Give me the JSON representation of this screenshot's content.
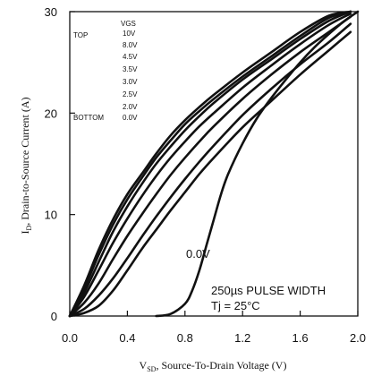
{
  "chart_data": {
    "type": "line",
    "title": "",
    "xlabel_main": "V",
    "xlabel_sub": "SD",
    "xlabel_rest": ", Source-To-Drain Voltage  (V)",
    "ylabel_main": "I",
    "ylabel_sub": "D",
    "ylabel_rest": ", Drain-to-Source Current (A)",
    "xlim": [
      0,
      2.0
    ],
    "ylim": [
      0,
      30
    ],
    "xticks": [
      "0.0",
      "0.4",
      "0.8",
      "1.2",
      "1.6",
      "2.0"
    ],
    "yticks": [
      "0",
      "10",
      "20",
      "30"
    ],
    "legend": {
      "header": "VGS",
      "top_label": "TOP",
      "bottom_label": "BOTTOM",
      "entries": [
        "10V",
        "8.0V",
        "4.5V",
        "3.5V",
        "3.0V",
        "2.5V",
        "2.0V",
        "0.0V"
      ]
    },
    "annotations": {
      "curve_label": "0.0V",
      "pulse": "250µs PULSE WIDTH",
      "temp": "Tj = 25°C"
    },
    "series": [
      {
        "name": "10V",
        "x": [
          0,
          0.1,
          0.2,
          0.3,
          0.4,
          0.5,
          0.6,
          0.7,
          0.8,
          0.9,
          1.0,
          1.2,
          1.4,
          1.6,
          1.8,
          1.95
        ],
        "y": [
          0,
          3,
          6.5,
          9.5,
          12,
          14,
          16,
          17.8,
          19.3,
          20.6,
          21.8,
          24,
          26,
          28,
          29.6,
          30
        ]
      },
      {
        "name": "8.0V",
        "x": [
          0,
          0.1,
          0.2,
          0.3,
          0.4,
          0.5,
          0.6,
          0.7,
          0.8,
          0.9,
          1.0,
          1.2,
          1.4,
          1.6,
          1.8,
          1.95
        ],
        "y": [
          0,
          2.7,
          6,
          9,
          11.5,
          13.6,
          15.6,
          17.3,
          18.9,
          20.2,
          21.4,
          23.6,
          25.6,
          27.6,
          29.4,
          30
        ]
      },
      {
        "name": "4.5V",
        "x": [
          0,
          0.1,
          0.2,
          0.3,
          0.4,
          0.5,
          0.6,
          0.7,
          0.8,
          0.9,
          1.0,
          1.2,
          1.4,
          1.6,
          1.8,
          1.95
        ],
        "y": [
          0,
          2.3,
          5.3,
          8.3,
          10.8,
          13,
          15,
          16.7,
          18.3,
          19.7,
          21,
          23.3,
          25.3,
          27.3,
          29.1,
          30
        ]
      },
      {
        "name": "3.5V",
        "x": [
          0,
          0.1,
          0.2,
          0.3,
          0.4,
          0.5,
          0.6,
          0.7,
          0.8,
          0.9,
          1.0,
          1.2,
          1.4,
          1.6,
          1.8,
          1.95
        ],
        "y": [
          0,
          1.9,
          4.5,
          7.2,
          9.6,
          11.8,
          13.8,
          15.6,
          17.2,
          18.7,
          20,
          22.5,
          24.7,
          26.8,
          28.7,
          29.8
        ]
      },
      {
        "name": "3.0V",
        "x": [
          0,
          0.1,
          0.2,
          0.3,
          0.4,
          0.5,
          0.6,
          0.7,
          0.8,
          0.9,
          1.0,
          1.2,
          1.4,
          1.6,
          1.8,
          1.95
        ],
        "y": [
          0,
          1.3,
          3.2,
          5.6,
          7.9,
          10,
          12,
          13.9,
          15.6,
          17.2,
          18.7,
          21.4,
          23.8,
          26,
          28,
          29.5
        ]
      },
      {
        "name": "2.5V",
        "x": [
          0,
          0.1,
          0.2,
          0.3,
          0.4,
          0.5,
          0.6,
          0.7,
          0.8,
          0.9,
          1.0,
          1.2,
          1.4,
          1.6,
          1.8,
          1.95
        ],
        "y": [
          0,
          0.7,
          2,
          3.7,
          5.7,
          7.8,
          9.8,
          11.7,
          13.5,
          15.2,
          16.8,
          19.8,
          22.4,
          24.8,
          27,
          28.8
        ]
      },
      {
        "name": "2.0V",
        "x": [
          0,
          0.1,
          0.2,
          0.3,
          0.4,
          0.5,
          0.6,
          0.7,
          0.8,
          0.9,
          1.0,
          1.2,
          1.4,
          1.6,
          1.8,
          1.95
        ],
        "y": [
          0,
          0.3,
          1,
          2.5,
          4.5,
          6.6,
          8.5,
          10.4,
          12.2,
          14,
          15.6,
          18.6,
          21.2,
          23.8,
          26.2,
          28
        ]
      },
      {
        "name": "0.0V",
        "x": [
          0.6,
          0.7,
          0.8,
          0.85,
          0.9,
          0.95,
          1.0,
          1.05,
          1.1,
          1.2,
          1.3,
          1.4,
          1.5,
          1.6,
          1.7,
          1.8,
          1.9,
          2.0
        ],
        "y": [
          0,
          0.2,
          1.2,
          2.5,
          4.5,
          7,
          9.5,
          12,
          14,
          17,
          19.5,
          21.5,
          23.3,
          25,
          26.5,
          27.8,
          29,
          30
        ]
      }
    ]
  }
}
